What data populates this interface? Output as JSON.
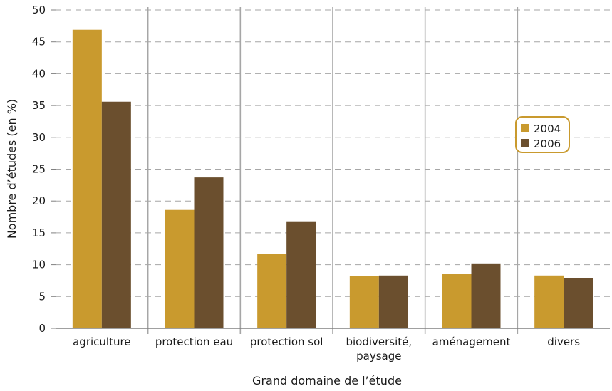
{
  "chart_data": {
    "type": "bar",
    "title": "",
    "xlabel": "Grand domaine de l’étude",
    "ylabel": "Nombre d’études (en %)",
    "ylim": [
      0,
      50
    ],
    "yticks": [
      0,
      5,
      10,
      15,
      20,
      25,
      30,
      35,
      40,
      45,
      50
    ],
    "grid": "horizontal dashed",
    "legend_position": "right",
    "categories": [
      [
        "agriculture"
      ],
      [
        "protection eau"
      ],
      [
        "protection sol"
      ],
      [
        "biodiversité,",
        "paysage"
      ],
      [
        "aménagement"
      ],
      [
        "divers"
      ]
    ],
    "series": [
      {
        "name": "2004",
        "color": "#C99A2E",
        "values": [
          46.9,
          18.6,
          11.7,
          8.2,
          8.5,
          8.3
        ]
      },
      {
        "name": "2006",
        "color": "#6B4F2E",
        "values": [
          35.6,
          23.7,
          16.7,
          8.3,
          10.2,
          7.9
        ]
      }
    ]
  },
  "colors": {
    "grid": "#a6a6a6",
    "separator": "#a6a6a6",
    "axis": "#808080",
    "legend_border": "#C99A2E"
  }
}
